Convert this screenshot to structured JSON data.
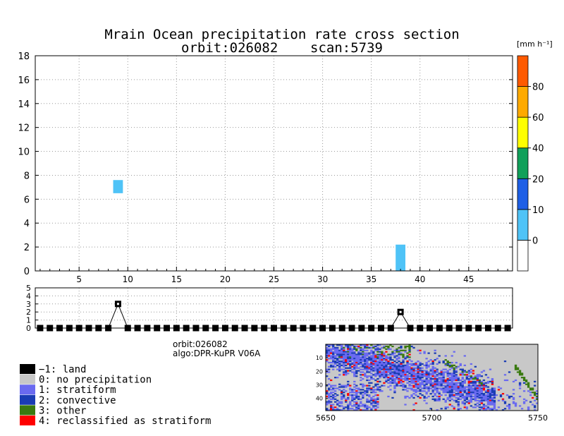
{
  "title": {
    "line1": "Mrain Ocean precipitation rate cross section",
    "line2": "orbit:026082    scan:5739"
  },
  "colors": {
    "land": "#000000",
    "no_precipitation": "#c8c8c8",
    "stratiform": "#6a6af0",
    "convective": "#1a3cb4",
    "other": "#3a7a10",
    "reclassified": "#ff0000",
    "rain_0_10": "#4fc3f7"
  },
  "chart_data": [
    {
      "type": "heatmap",
      "title": "Mrain Ocean precipitation rate cross section",
      "subtitle": "orbit:026082    scan:5739",
      "xlim": [
        0.5,
        49.5
      ],
      "ylim": [
        0,
        18
      ],
      "xticks": [
        "5",
        "10",
        "15",
        "20",
        "25",
        "30",
        "35",
        "40",
        "45"
      ],
      "yticks": [
        "0",
        "2",
        "4",
        "6",
        "8",
        "10",
        "12",
        "14",
        "16",
        "18"
      ],
      "grid": true,
      "cells": [
        {
          "x": 9,
          "y0": 6.5,
          "y1": 7.6,
          "value_range": "0-10"
        },
        {
          "x": 38,
          "y0": 0,
          "y1": 2.2,
          "value_range": "0-10"
        }
      ],
      "colorbar": {
        "unit": "[mm h⁻¹]",
        "labels": [
          "0",
          "10",
          "20",
          "40",
          "60",
          "80"
        ],
        "colors": [
          "#ffffff",
          "#4fc3f7",
          "#1e5fe6",
          "#11a05a",
          "#ffff00",
          "#ffaa00",
          "#ff5a00"
        ]
      }
    },
    {
      "type": "line",
      "ylim": [
        0,
        5
      ],
      "yticks": [
        "0",
        "1",
        "2",
        "3",
        "4",
        "5"
      ],
      "xlim": [
        0.5,
        49.5
      ],
      "x": [
        1,
        2,
        3,
        4,
        5,
        6,
        7,
        8,
        9,
        10,
        11,
        12,
        13,
        14,
        15,
        16,
        17,
        18,
        19,
        20,
        21,
        22,
        23,
        24,
        25,
        26,
        27,
        28,
        29,
        30,
        31,
        32,
        33,
        34,
        35,
        36,
        37,
        38,
        39,
        40,
        41,
        42,
        43,
        44,
        45,
        46,
        47,
        48,
        49
      ],
      "values": [
        0,
        0,
        0,
        0,
        0,
        0,
        0,
        0,
        3,
        0,
        0,
        0,
        0,
        0,
        0,
        0,
        0,
        0,
        0,
        0,
        0,
        0,
        0,
        0,
        0,
        0,
        0,
        0,
        0,
        0,
        0,
        0,
        0,
        0,
        0,
        0,
        0,
        2,
        0,
        0,
        0,
        0,
        0,
        0,
        0,
        0,
        0,
        0,
        0
      ],
      "grid": true
    },
    {
      "type": "heatmap",
      "title": "",
      "xticks": [
        "5650",
        "5700",
        "5750"
      ],
      "yticks": [
        "10",
        "20",
        "30",
        "40"
      ],
      "xlim": [
        5650,
        5750
      ],
      "ylim": [
        1,
        49
      ]
    }
  ],
  "info": {
    "orbit": "orbit:026082",
    "algo": "algo:DPR-KuPR V06A"
  },
  "legend": [
    {
      "label": "−1: land",
      "color": "#000000"
    },
    {
      "label": "0: no precipitation",
      "color": "#c8c8c8"
    },
    {
      "label": "1: stratiform",
      "color": "#6a6af0"
    },
    {
      "label": "2: convective",
      "color": "#1a3cb4"
    },
    {
      "label": "3: other",
      "color": "#3a7a10"
    },
    {
      "label": "4: reclassified as stratiform",
      "color": "#ff0000"
    }
  ]
}
